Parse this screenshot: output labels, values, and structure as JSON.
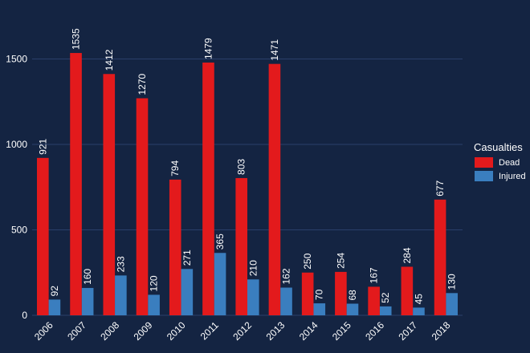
{
  "chart_data": {
    "type": "bar",
    "categories": [
      "2006",
      "2007",
      "2008",
      "2009",
      "2010",
      "2011",
      "2012",
      "2013",
      "2014",
      "2015",
      "2016",
      "2017",
      "2018"
    ],
    "series": [
      {
        "name": "Dead",
        "color": "#e31a1c",
        "values": [
          921,
          1535,
          1412,
          1270,
          794,
          1479,
          803,
          1471,
          250,
          254,
          167,
          284,
          677
        ]
      },
      {
        "name": "Injured",
        "color": "#3a7ebf",
        "values": [
          92,
          160,
          233,
          120,
          271,
          365,
          210,
          162,
          70,
          68,
          52,
          45,
          130
        ]
      }
    ],
    "ylim": [
      0,
      1500
    ],
    "yticks": [
      0,
      500,
      1000,
      1500
    ],
    "legend": {
      "title": "Casualties",
      "position": "right"
    },
    "grid": true,
    "colors": {
      "background": "#142442",
      "grid": "#2a3f6a",
      "text": "#ffffff"
    }
  }
}
